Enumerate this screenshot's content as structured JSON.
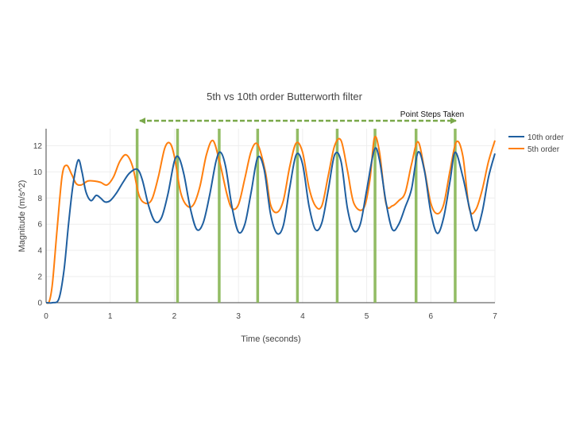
{
  "chart_data": {
    "type": "line",
    "title": "5th vs 10th order Butterworth filter",
    "xlabel": "Time (seconds)",
    "ylabel": "Magnitude (m/s^2)",
    "xlim": [
      0,
      7
    ],
    "ylim": [
      0,
      13.3
    ],
    "xticks": [
      0,
      1,
      2,
      3,
      4,
      5,
      6,
      7
    ],
    "yticks": [
      0,
      2,
      4,
      6,
      8,
      10,
      12
    ],
    "grid": true,
    "legend_position": "top-right",
    "annotation": "Point Steps Taken",
    "step_markers_x": [
      1.42,
      2.05,
      2.7,
      3.3,
      3.92,
      4.54,
      5.13,
      5.77,
      6.38
    ],
    "series": [
      {
        "name": "10th order",
        "color": "#1f5fa0",
        "x": [
          0,
          0.1,
          0.2,
          0.28,
          0.35,
          0.42,
          0.5,
          0.56,
          0.62,
          0.7,
          0.78,
          0.85,
          0.92,
          1.0,
          1.1,
          1.2,
          1.3,
          1.42,
          1.5,
          1.6,
          1.7,
          1.8,
          1.9,
          2.0,
          2.07,
          2.15,
          2.25,
          2.35,
          2.45,
          2.55,
          2.65,
          2.72,
          2.8,
          2.9,
          3.0,
          3.1,
          3.2,
          3.3,
          3.4,
          3.5,
          3.6,
          3.7,
          3.8,
          3.9,
          4.0,
          4.1,
          4.2,
          4.3,
          4.4,
          4.5,
          4.6,
          4.7,
          4.8,
          4.9,
          5.0,
          5.12,
          5.2,
          5.3,
          5.4,
          5.5,
          5.6,
          5.7,
          5.8,
          5.9,
          6.0,
          6.1,
          6.2,
          6.3,
          6.38,
          6.5,
          6.6,
          6.7,
          6.8,
          6.9,
          7.0
        ],
        "y": [
          0,
          0,
          0.3,
          2.5,
          6.0,
          9.0,
          10.9,
          10.0,
          8.5,
          7.8,
          8.2,
          8.0,
          7.7,
          7.8,
          8.4,
          9.2,
          9.9,
          10.2,
          9.4,
          7.4,
          6.2,
          6.5,
          8.3,
          10.8,
          11.1,
          9.8,
          7.2,
          5.6,
          6.1,
          8.2,
          10.8,
          11.5,
          10.4,
          7.3,
          5.4,
          6.0,
          8.5,
          11.1,
          10.2,
          6.8,
          5.3,
          5.9,
          8.8,
          11.3,
          10.6,
          7.4,
          5.6,
          6.1,
          8.6,
          11.3,
          10.8,
          7.2,
          5.5,
          6.0,
          8.6,
          11.7,
          10.9,
          7.7,
          5.6,
          6.0,
          7.3,
          8.7,
          11.5,
          10.1,
          6.9,
          5.3,
          6.5,
          9.3,
          11.5,
          9.6,
          7.3,
          5.5,
          6.9,
          9.6,
          11.4
        ]
      },
      {
        "name": "5th order",
        "color": "#ff7f0e",
        "x": [
          0,
          0.05,
          0.1,
          0.17,
          0.25,
          0.32,
          0.4,
          0.47,
          0.55,
          0.65,
          0.75,
          0.85,
          0.95,
          1.05,
          1.15,
          1.25,
          1.35,
          1.45,
          1.55,
          1.65,
          1.75,
          1.85,
          1.93,
          2.0,
          2.1,
          2.2,
          2.3,
          2.4,
          2.5,
          2.6,
          2.7,
          2.82,
          2.9,
          3.0,
          3.1,
          3.2,
          3.3,
          3.42,
          3.5,
          3.6,
          3.7,
          3.8,
          3.9,
          4.0,
          4.1,
          4.2,
          4.3,
          4.4,
          4.5,
          4.6,
          4.7,
          4.8,
          4.95,
          5.05,
          5.12,
          5.2,
          5.3,
          5.4,
          5.5,
          5.6,
          5.7,
          5.8,
          5.9,
          6.0,
          6.1,
          6.2,
          6.3,
          6.4,
          6.5,
          6.6,
          6.7,
          6.8,
          6.9,
          7.0
        ],
        "y": [
          0,
          0.1,
          1.5,
          5.5,
          9.7,
          10.5,
          9.8,
          9.1,
          9.0,
          9.3,
          9.3,
          9.2,
          9.0,
          9.6,
          10.8,
          11.3,
          10.4,
          8.2,
          7.6,
          7.9,
          9.6,
          11.8,
          12.2,
          11.2,
          8.4,
          7.4,
          7.5,
          8.9,
          11.3,
          12.4,
          10.9,
          8.3,
          7.2,
          7.5,
          9.5,
          11.6,
          12.1,
          10.0,
          7.5,
          6.9,
          7.8,
          10.4,
          12.2,
          11.5,
          8.8,
          7.4,
          7.4,
          9.7,
          12.0,
          12.4,
          10.1,
          7.6,
          7.2,
          9.4,
          12.6,
          11.5,
          7.6,
          7.4,
          7.8,
          8.4,
          10.6,
          12.3,
          10.2,
          7.6,
          6.8,
          7.5,
          10.1,
          12.3,
          11.2,
          7.2,
          7.1,
          8.6,
          10.8,
          12.4
        ]
      }
    ]
  }
}
